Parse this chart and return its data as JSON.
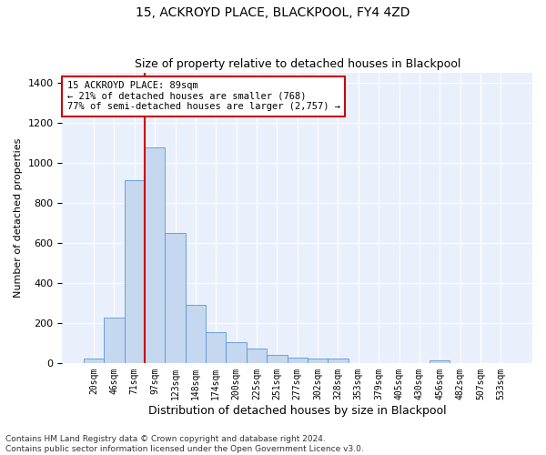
{
  "title": "15, ACKROYD PLACE, BLACKPOOL, FY4 4ZD",
  "subtitle": "Size of property relative to detached houses in Blackpool",
  "xlabel": "Distribution of detached houses by size in Blackpool",
  "ylabel": "Number of detached properties",
  "bar_categories": [
    "20sqm",
    "46sqm",
    "71sqm",
    "97sqm",
    "123sqm",
    "148sqm",
    "174sqm",
    "200sqm",
    "225sqm",
    "251sqm",
    "277sqm",
    "302sqm",
    "328sqm",
    "353sqm",
    "379sqm",
    "405sqm",
    "430sqm",
    "456sqm",
    "482sqm",
    "507sqm",
    "533sqm"
  ],
  "bar_values": [
    20,
    225,
    910,
    1075,
    650,
    290,
    155,
    105,
    70,
    38,
    28,
    20,
    20,
    0,
    0,
    0,
    0,
    13,
    0,
    0,
    0
  ],
  "bar_color": "#c5d8f0",
  "bar_edge_color": "#5a96d5",
  "vline_color": "#cc0000",
  "vline_x_index": 2.5,
  "annotation_text_line1": "15 ACKROYD PLACE: 89sqm",
  "annotation_text_line2": "← 21% of detached houses are smaller (768)",
  "annotation_text_line3": "77% of semi-detached houses are larger (2,757) →",
  "annotation_box_facecolor": "#ffffff",
  "annotation_box_edgecolor": "#cc0000",
  "ylim_max": 1450,
  "yticks": [
    0,
    200,
    400,
    600,
    800,
    1000,
    1200,
    1400
  ],
  "bg_color": "#eaf0fb",
  "grid_color": "#ffffff",
  "title_fontsize": 10,
  "subtitle_fontsize": 9,
  "xlabel_fontsize": 9,
  "ylabel_fontsize": 8,
  "tick_fontsize": 8,
  "xtick_fontsize": 7,
  "footer_line1": "Contains HM Land Registry data © Crown copyright and database right 2024.",
  "footer_line2": "Contains public sector information licensed under the Open Government Licence v3.0.",
  "footer_fontsize": 6.5,
  "fig_width": 6.0,
  "fig_height": 5.0,
  "dpi": 100
}
